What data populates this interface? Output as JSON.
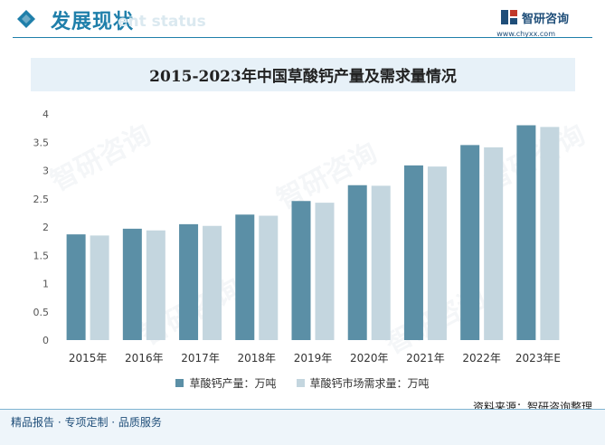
{
  "header": {
    "title": "发展现状",
    "subtitle": "ent status",
    "brand_name": "智研咨询",
    "brand_url": "www.chyxx.com"
  },
  "chart_title": "2015-2023年中国草酸钙产量及需求量情况",
  "chart_data": {
    "type": "bar",
    "title": "2015-2023年中国草酸钙产量及需求量情况",
    "categories": [
      "2015年",
      "2016年",
      "2017年",
      "2018年",
      "2019年",
      "2020年",
      "2021年",
      "2022年",
      "2023年E"
    ],
    "series": [
      {
        "name": "草酸钙产量：万吨",
        "color": "#5b8fa6",
        "values": [
          1.87,
          1.97,
          2.05,
          2.22,
          2.46,
          2.74,
          3.09,
          3.45,
          3.8
        ]
      },
      {
        "name": "草酸钙市场需求量：万吨",
        "color": "#c4d6df",
        "values": [
          1.85,
          1.94,
          2.02,
          2.2,
          2.43,
          2.73,
          3.07,
          3.41,
          3.77
        ]
      }
    ],
    "y_ticks": [
      "0",
      "0.5",
      "1",
      "1.5",
      "2",
      "2.5",
      "3",
      "3.5",
      "4"
    ],
    "ylim": [
      0,
      4
    ],
    "grid": false,
    "legend_position": "bottom"
  },
  "source": "资料来源：智研咨询整理",
  "footer_text": "精品报告 · 专项定制 · 品质服务",
  "watermark_text": "智研咨询"
}
